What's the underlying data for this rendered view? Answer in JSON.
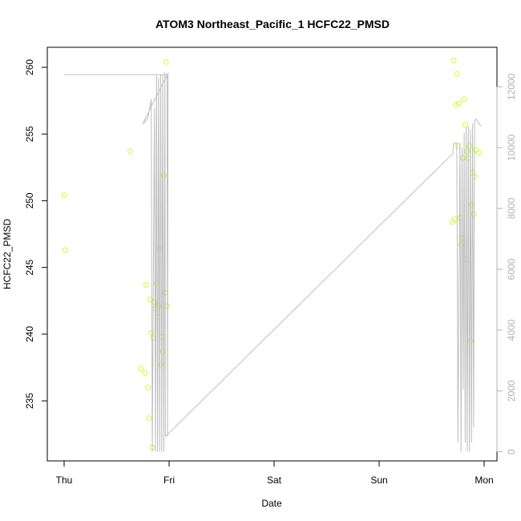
{
  "chart_data": {
    "type": "scatter",
    "title": "ATOM3 Northeast_Pacific_1 HCFC22_PMSD",
    "xlabel": "Date",
    "ylabel": "HCFC22_PMSD",
    "x_tick_labels": [
      "Thu",
      "Fri",
      "Sat",
      "Sun",
      "Mon"
    ],
    "x_tick_days": [
      0,
      1,
      2,
      3,
      4
    ],
    "xlim": [
      0,
      4.1
    ],
    "ylim": [
      230.5,
      261.5
    ],
    "y_ticks": [
      235,
      240,
      245,
      250,
      255,
      260
    ],
    "y2lim": [
      -300,
      13300
    ],
    "y2_ticks": [
      0,
      2000,
      4000,
      6000,
      8000,
      10000,
      12000
    ],
    "grid": false,
    "legend": "none",
    "point_color": "#ccff33",
    "line_color": "#bebebe",
    "series": [
      {
        "kind": "points",
        "axis": "left",
        "x": [
          0.0,
          0.01,
          0.63,
          0.73,
          0.77,
          0.78,
          0.8,
          0.81,
          0.82,
          0.83,
          0.84,
          0.85,
          0.86,
          0.87,
          0.88,
          0.89,
          0.9,
          0.91,
          0.92,
          0.93,
          0.94,
          0.95,
          0.96,
          0.97,
          0.98,
          3.7,
          3.71,
          3.72,
          3.73,
          3.74,
          3.75,
          3.76,
          3.77,
          3.78,
          3.79,
          3.8,
          3.81,
          3.82,
          3.83,
          3.84,
          3.85,
          3.86,
          3.87,
          3.88,
          3.89,
          3.9,
          3.91,
          3.92,
          3.95
        ],
        "y": [
          250.4,
          246.3,
          253.7,
          237.4,
          237.1,
          243.7,
          236.0,
          233.7,
          242.6,
          240.1,
          231.5,
          239.7,
          242.4,
          241.9,
          243.8,
          241.3,
          242.1,
          246.4,
          237.7,
          239.8,
          238.7,
          251.9,
          243.1,
          260.4,
          242.1,
          248.4,
          260.5,
          248.6,
          257.2,
          259.5,
          254.1,
          257.3,
          248.7,
          246.7,
          247.2,
          253.2,
          257.6,
          255.7,
          245.6,
          253.7,
          253.2,
          254.1,
          239.5,
          249.7,
          252.1,
          249.0,
          251.8,
          253.8,
          253.6
        ]
      },
      {
        "kind": "line",
        "axis": "right",
        "x": [
          0.0,
          0.98,
          0.985,
          0.99,
          0.75,
          0.76,
          0.8,
          0.83,
          0.84,
          0.86,
          0.87,
          0.88,
          0.89,
          0.9,
          0.91,
          0.92,
          0.93,
          0.94,
          0.95,
          0.96,
          0.965,
          3.7,
          3.71,
          3.74,
          3.75,
          3.77,
          3.78,
          3.79,
          3.8,
          3.81,
          3.82,
          3.83,
          3.84,
          3.85,
          3.86,
          3.87,
          3.88,
          3.89,
          3.9,
          3.91,
          3.92,
          3.95,
          3.97
        ],
        "y": [
          12400,
          12400,
          500,
          12450,
          10800,
          10800,
          11000,
          11600,
          0,
          11300,
          0,
          12400,
          0,
          12300,
          0,
          12400,
          0,
          12400,
          0,
          12500,
          500,
          9800,
          10150,
          10150,
          300,
          10150,
          0,
          10000,
          2050,
          10500,
          300,
          10700,
          0,
          10700,
          0,
          10600,
          300,
          10800,
          800,
          10900,
          10950,
          10800,
          10700
        ]
      }
    ]
  }
}
